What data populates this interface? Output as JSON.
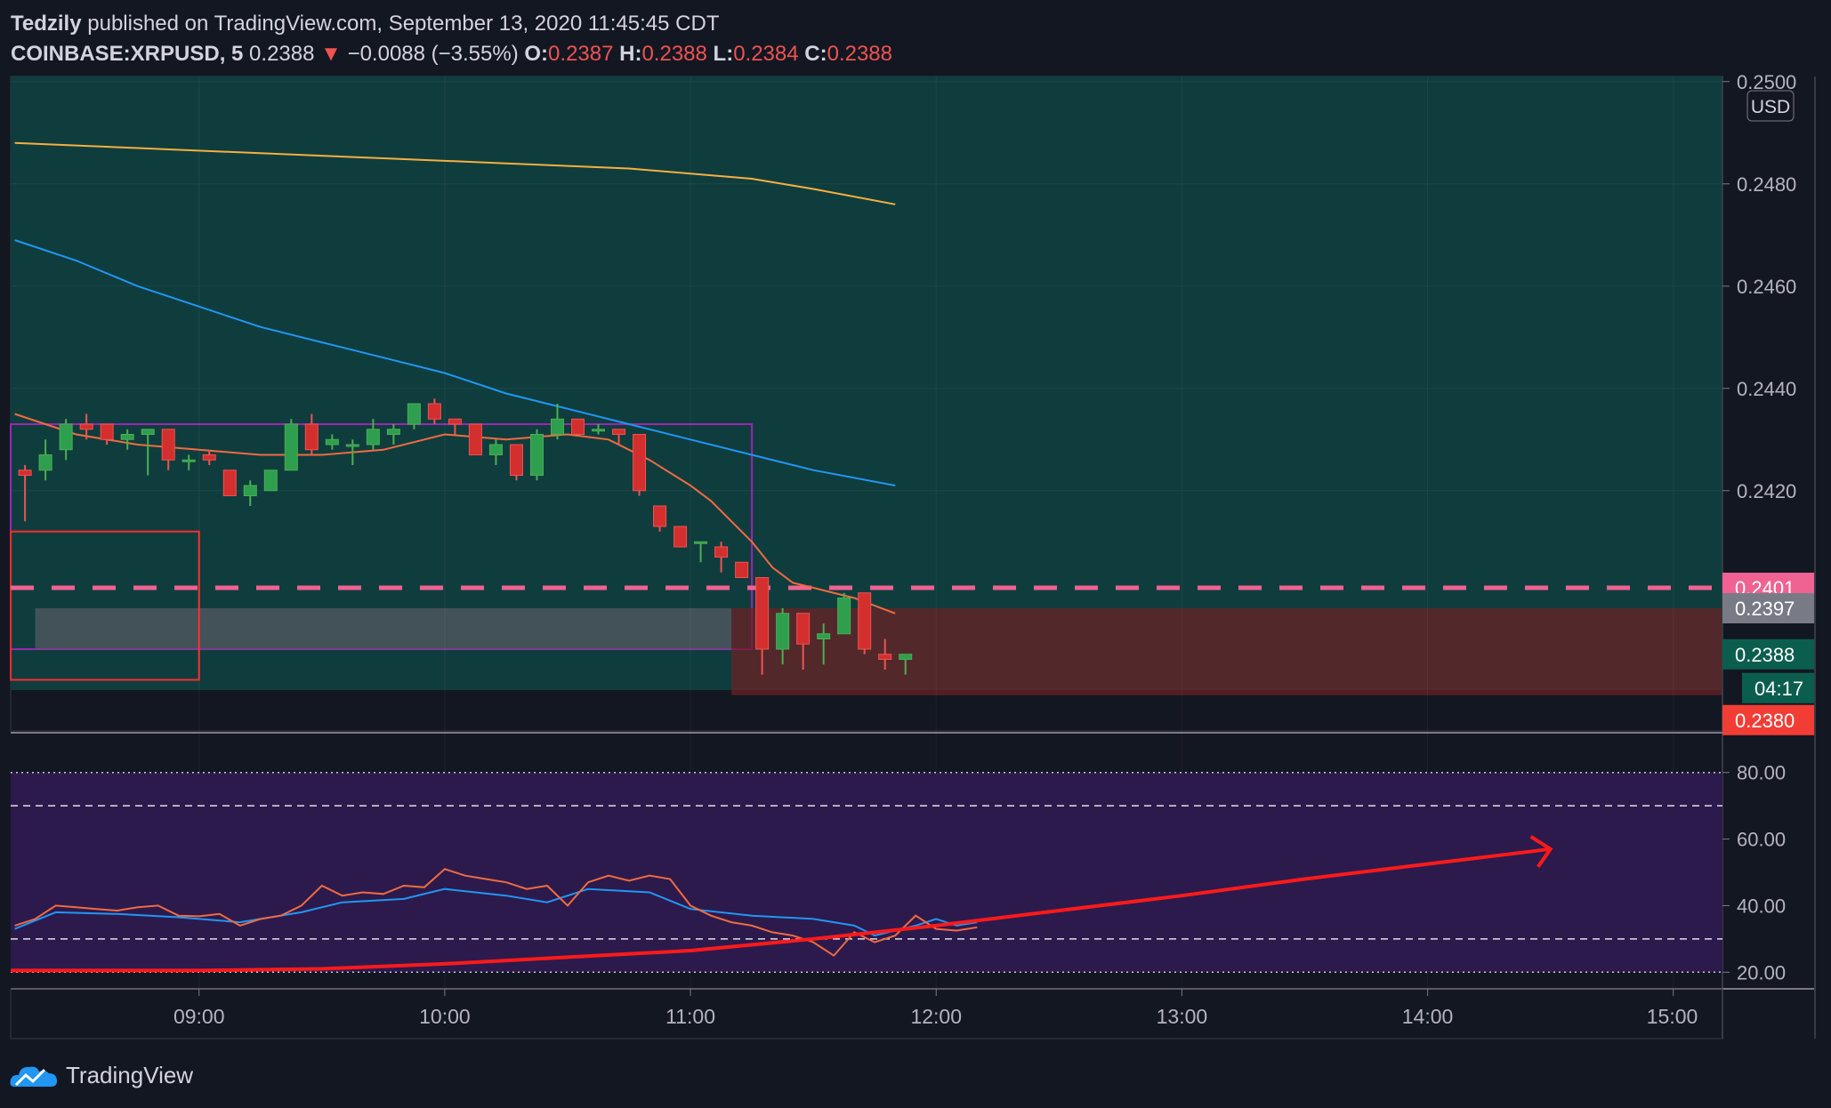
{
  "header": {
    "publisher": "Tedzily",
    "published_text": "published on TradingView.com, September 13, 2020 11:45:45 CDT",
    "symbol": "COINBASE:XRPUSD, 5",
    "price": "0.2388",
    "arrow": "▼",
    "change": "−0.0088 (−3.55%)",
    "o_label": "O:",
    "o_value": "0.2387",
    "h_label": "H:",
    "h_value": "0.2388",
    "l_label": "L:",
    "l_value": "0.2384",
    "c_label": "C:",
    "c_value": "0.2388"
  },
  "footer": {
    "brand": "TradingView",
    "icon": "tradingview-cloud-icon"
  },
  "colors": {
    "up": "#26a69a",
    "up_body": "#2e9e4f",
    "down": "#ef5350",
    "down_body": "#d32f2f",
    "ma_fast": "#f06b40",
    "ma_mid": "#2196f3",
    "ma_slow": "#f5b041",
    "dash_level": "#f06292",
    "rsi_bg": "#2c1a4d",
    "trend": "#ff1a1a"
  },
  "chart_data": {
    "type": "candlestick",
    "currency_label": "USD",
    "x_axis_ticks": [
      "09:00",
      "10:00",
      "11:00",
      "12:00",
      "13:00",
      "14:00",
      "15:00"
    ],
    "x_visible_start": "08:14",
    "x_visible_end": "15:12",
    "y_axis_ticks": [
      "0.2500",
      "0.2480",
      "0.2460",
      "0.2440",
      "0.2420"
    ],
    "y_range": [
      0.2373,
      0.2501
    ],
    "price_labels": [
      {
        "text": "0.2401",
        "value": 0.2401,
        "color": "#f06292"
      },
      {
        "text": "0.2397",
        "value": 0.2397,
        "color": "#787b86"
      },
      {
        "text": "0.2388",
        "value": 0.2388,
        "color": "#0b5e4e"
      },
      {
        "text": "04:17",
        "value": 0.2381,
        "color": "#0b5e4e"
      },
      {
        "text": "0.2380",
        "value": 0.238,
        "color": "#f23d35"
      }
    ],
    "candles": [
      {
        "t": "08:15",
        "o": 0.2424,
        "h": 0.2425,
        "l": 0.2414,
        "c": 0.2423
      },
      {
        "t": "08:20",
        "o": 0.2424,
        "h": 0.243,
        "l": 0.2422,
        "c": 0.2427
      },
      {
        "t": "08:25",
        "o": 0.2428,
        "h": 0.2434,
        "l": 0.2426,
        "c": 0.2433
      },
      {
        "t": "08:30",
        "o": 0.2433,
        "h": 0.2435,
        "l": 0.243,
        "c": 0.2432
      },
      {
        "t": "08:35",
        "o": 0.2433,
        "h": 0.2433,
        "l": 0.2429,
        "c": 0.243
      },
      {
        "t": "08:40",
        "o": 0.243,
        "h": 0.2432,
        "l": 0.2428,
        "c": 0.2431
      },
      {
        "t": "08:45",
        "o": 0.2431,
        "h": 0.2432,
        "l": 0.2423,
        "c": 0.2432
      },
      {
        "t": "08:50",
        "o": 0.2432,
        "h": 0.2432,
        "l": 0.2424,
        "c": 0.2426
      },
      {
        "t": "08:55",
        "o": 0.2426,
        "h": 0.2427,
        "l": 0.2424,
        "c": 0.2426
      },
      {
        "t": "09:00",
        "o": 0.2427,
        "h": 0.2428,
        "l": 0.2425,
        "c": 0.2426
      },
      {
        "t": "09:05",
        "o": 0.2424,
        "h": 0.2424,
        "l": 0.2419,
        "c": 0.2419
      },
      {
        "t": "09:10",
        "o": 0.2419,
        "h": 0.2422,
        "l": 0.2417,
        "c": 0.2421
      },
      {
        "t": "09:15",
        "o": 0.242,
        "h": 0.2424,
        "l": 0.242,
        "c": 0.2424
      },
      {
        "t": "09:20",
        "o": 0.2424,
        "h": 0.2434,
        "l": 0.2424,
        "c": 0.2433
      },
      {
        "t": "09:25",
        "o": 0.2433,
        "h": 0.2435,
        "l": 0.2427,
        "c": 0.2428
      },
      {
        "t": "09:30",
        "o": 0.2429,
        "h": 0.2431,
        "l": 0.2428,
        "c": 0.243
      },
      {
        "t": "09:35",
        "o": 0.2429,
        "h": 0.243,
        "l": 0.2425,
        "c": 0.2429
      },
      {
        "t": "09:40",
        "o": 0.2429,
        "h": 0.2434,
        "l": 0.2428,
        "c": 0.2432
      },
      {
        "t": "09:45",
        "o": 0.2431,
        "h": 0.2433,
        "l": 0.2429,
        "c": 0.2432
      },
      {
        "t": "09:50",
        "o": 0.2433,
        "h": 0.2437,
        "l": 0.2432,
        "c": 0.2437
      },
      {
        "t": "09:55",
        "o": 0.2437,
        "h": 0.2438,
        "l": 0.2433,
        "c": 0.2434
      },
      {
        "t": "10:00",
        "o": 0.2434,
        "h": 0.2434,
        "l": 0.2431,
        "c": 0.2433
      },
      {
        "t": "10:05",
        "o": 0.2433,
        "h": 0.2433,
        "l": 0.2427,
        "c": 0.2427
      },
      {
        "t": "10:10",
        "o": 0.2427,
        "h": 0.243,
        "l": 0.2425,
        "c": 0.2429
      },
      {
        "t": "10:15",
        "o": 0.2429,
        "h": 0.2429,
        "l": 0.2422,
        "c": 0.2423
      },
      {
        "t": "10:20",
        "o": 0.2423,
        "h": 0.2432,
        "l": 0.2422,
        "c": 0.2431
      },
      {
        "t": "10:25",
        "o": 0.2431,
        "h": 0.2437,
        "l": 0.243,
        "c": 0.2434
      },
      {
        "t": "10:30",
        "o": 0.2434,
        "h": 0.2434,
        "l": 0.2431,
        "c": 0.2431
      },
      {
        "t": "10:35",
        "o": 0.2432,
        "h": 0.2433,
        "l": 0.2431,
        "c": 0.2432
      },
      {
        "t": "10:40",
        "o": 0.2432,
        "h": 0.2432,
        "l": 0.2429,
        "c": 0.2431
      },
      {
        "t": "10:45",
        "o": 0.2431,
        "h": 0.2431,
        "l": 0.2419,
        "c": 0.242
      },
      {
        "t": "10:50",
        "o": 0.2417,
        "h": 0.2417,
        "l": 0.2412,
        "c": 0.2413
      },
      {
        "t": "10:55",
        "o": 0.2413,
        "h": 0.2413,
        "l": 0.2409,
        "c": 0.2409
      },
      {
        "t": "11:00",
        "o": 0.241,
        "h": 0.241,
        "l": 0.2406,
        "c": 0.241
      },
      {
        "t": "11:05",
        "o": 0.2409,
        "h": 0.241,
        "l": 0.2404,
        "c": 0.2407
      },
      {
        "t": "11:10",
        "o": 0.2406,
        "h": 0.2406,
        "l": 0.2403,
        "c": 0.2403
      },
      {
        "t": "11:15",
        "o": 0.2403,
        "h": 0.2403,
        "l": 0.2384,
        "c": 0.2389
      },
      {
        "t": "11:20",
        "o": 0.2389,
        "h": 0.2397,
        "l": 0.2386,
        "c": 0.2396
      },
      {
        "t": "11:25",
        "o": 0.2396,
        "h": 0.2396,
        "l": 0.2385,
        "c": 0.239
      },
      {
        "t": "11:30",
        "o": 0.2391,
        "h": 0.2394,
        "l": 0.2386,
        "c": 0.2392
      },
      {
        "t": "11:35",
        "o": 0.2392,
        "h": 0.24,
        "l": 0.2392,
        "c": 0.2399
      },
      {
        "t": "11:40",
        "o": 0.24,
        "h": 0.24,
        "l": 0.2388,
        "c": 0.2389
      },
      {
        "t": "11:45",
        "o": 0.2388,
        "h": 0.2391,
        "l": 0.2385,
        "c": 0.2387
      },
      {
        "t": "11:50",
        "o": 0.2387,
        "h": 0.2388,
        "l": 0.2384,
        "c": 0.2388
      }
    ],
    "ma_fast": [
      [
        "08:15",
        0.2435
      ],
      [
        "08:30",
        0.2431
      ],
      [
        "08:45",
        0.2429
      ],
      [
        "09:00",
        0.2428
      ],
      [
        "09:15",
        0.2427
      ],
      [
        "09:30",
        0.2427
      ],
      [
        "09:45",
        0.2428
      ],
      [
        "10:00",
        0.2431
      ],
      [
        "10:15",
        0.243
      ],
      [
        "10:30",
        0.2431
      ],
      [
        "10:40",
        0.243
      ],
      [
        "10:50",
        0.2426
      ],
      [
        "11:00",
        0.2421
      ],
      [
        "11:05",
        0.2418
      ],
      [
        "11:10",
        0.2414
      ],
      [
        "11:15",
        0.241
      ],
      [
        "11:20",
        0.2405
      ],
      [
        "11:25",
        0.2402
      ],
      [
        "11:30",
        0.2401
      ],
      [
        "11:40",
        0.2399
      ],
      [
        "11:50",
        0.2396
      ]
    ],
    "ma_mid": [
      [
        "08:15",
        0.2469
      ],
      [
        "08:30",
        0.2465
      ],
      [
        "08:45",
        0.246
      ],
      [
        "09:00",
        0.2456
      ],
      [
        "09:15",
        0.2452
      ],
      [
        "09:30",
        0.2449
      ],
      [
        "09:45",
        0.2446
      ],
      [
        "10:00",
        0.2443
      ],
      [
        "10:15",
        0.2439
      ],
      [
        "10:30",
        0.2436
      ],
      [
        "10:45",
        0.2433
      ],
      [
        "11:00",
        0.243
      ],
      [
        "11:15",
        0.2427
      ],
      [
        "11:30",
        0.2424
      ],
      [
        "11:50",
        0.2421
      ]
    ],
    "ma_slow": [
      [
        "08:15",
        0.2488
      ],
      [
        "08:45",
        0.2487
      ],
      [
        "09:15",
        0.2486
      ],
      [
        "09:45",
        0.2485
      ],
      [
        "10:15",
        0.2484
      ],
      [
        "10:45",
        0.2483
      ],
      [
        "11:00",
        0.2482
      ],
      [
        "11:15",
        0.2481
      ],
      [
        "11:30",
        0.2479
      ],
      [
        "11:50",
        0.2476
      ]
    ],
    "dashed_level": 0.2401,
    "zones": [
      {
        "name": "green-zone",
        "from": "08:14",
        "to": "15:12",
        "low": 0.2381,
        "high": 0.2501,
        "fill": "#0f3d3e"
      },
      {
        "name": "purple-box",
        "from": "08:14",
        "to": "11:15",
        "low": 0.2389,
        "high": 0.2433,
        "stroke": "#9c27b0"
      },
      {
        "name": "grey-band",
        "from": "08:20",
        "to": "11:10",
        "low": 0.2389,
        "high": 0.2397,
        "fill": "#555a63"
      },
      {
        "name": "red-band",
        "from": "11:10",
        "to": "15:12",
        "low": 0.238,
        "high": 0.2397,
        "fill": "#6b2226"
      },
      {
        "name": "red-box",
        "from": "08:14",
        "to": "09:00",
        "low": 0.2383,
        "high": 0.2412,
        "stroke": "#ff2a2a"
      }
    ],
    "rsi": {
      "y_ticks": [
        "80.00",
        "60.00",
        "40.00",
        "20.00"
      ],
      "y_range": [
        15,
        85
      ],
      "upper_band": 70,
      "lower_band": 30,
      "rsi_line": [
        [
          "08:15",
          34
        ],
        [
          "08:20",
          36
        ],
        [
          "08:25",
          40
        ],
        [
          "08:30",
          39.5
        ],
        [
          "08:35",
          39
        ],
        [
          "08:40",
          38.5
        ],
        [
          "08:45",
          39.5
        ],
        [
          "08:50",
          40
        ],
        [
          "08:55",
          37
        ],
        [
          "09:00",
          36.8
        ],
        [
          "09:05",
          37.5
        ],
        [
          "09:10",
          34
        ],
        [
          "09:15",
          36
        ],
        [
          "09:20",
          37
        ],
        [
          "09:25",
          40
        ],
        [
          "09:30",
          46
        ],
        [
          "09:35",
          43
        ],
        [
          "09:40",
          44
        ],
        [
          "09:45",
          43.5
        ],
        [
          "09:50",
          46
        ],
        [
          "09:55",
          45.5
        ],
        [
          "10:00",
          51
        ],
        [
          "10:05",
          49
        ],
        [
          "10:10",
          48
        ],
        [
          "10:15",
          47
        ],
        [
          "10:20",
          45
        ],
        [
          "10:25",
          46
        ],
        [
          "10:30",
          40
        ],
        [
          "10:35",
          47
        ],
        [
          "10:40",
          49
        ],
        [
          "10:45",
          47.5
        ],
        [
          "10:50",
          49
        ],
        [
          "10:55",
          48
        ],
        [
          "11:00",
          40
        ],
        [
          "11:05",
          37
        ],
        [
          "11:10",
          35
        ],
        [
          "11:15",
          34
        ],
        [
          "11:20",
          32
        ],
        [
          "11:25",
          31
        ],
        [
          "11:30",
          29
        ],
        [
          "11:35",
          25
        ],
        [
          "11:40",
          32
        ],
        [
          "11:45",
          29
        ],
        [
          "11:50",
          31
        ],
        [
          "11:55",
          37
        ],
        [
          "12:00",
          33
        ],
        [
          "12:05",
          32.5
        ],
        [
          "12:10",
          33.5
        ]
      ],
      "signal_line": [
        [
          "08:15",
          33
        ],
        [
          "08:25",
          38
        ],
        [
          "08:40",
          37.5
        ],
        [
          "08:55",
          36.5
        ],
        [
          "09:10",
          35
        ],
        [
          "09:25",
          38
        ],
        [
          "09:35",
          41
        ],
        [
          "09:50",
          42
        ],
        [
          "10:00",
          45
        ],
        [
          "10:15",
          43
        ],
        [
          "10:25",
          41
        ],
        [
          "10:35",
          45
        ],
        [
          "10:50",
          44
        ],
        [
          "11:00",
          39
        ],
        [
          "11:15",
          37
        ],
        [
          "11:30",
          36
        ],
        [
          "11:40",
          34
        ],
        [
          "11:45",
          31
        ],
        [
          "11:55",
          34
        ],
        [
          "12:00",
          36
        ],
        [
          "12:05",
          34
        ],
        [
          "12:10",
          35
        ]
      ],
      "trend_arrow": [
        [
          "08:14",
          20.5
        ],
        [
          "09:00",
          20.5
        ],
        [
          "09:30",
          21
        ],
        [
          "10:00",
          22.5
        ],
        [
          "10:30",
          24.5
        ],
        [
          "11:00",
          26.5
        ],
        [
          "11:30",
          30
        ],
        [
          "12:00",
          34
        ],
        [
          "12:30",
          38.5
        ],
        [
          "13:00",
          43
        ],
        [
          "13:30",
          48
        ],
        [
          "14:00",
          52.5
        ],
        [
          "14:30",
          57
        ]
      ]
    }
  }
}
